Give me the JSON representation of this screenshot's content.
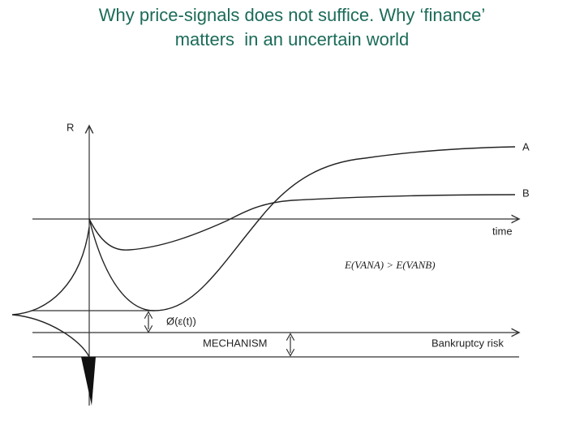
{
  "title": {
    "lines": [
      "Why price-signals does not suffice. Why ‘finance’",
      "matters  in an uncertain world"
    ]
  },
  "diagram": {
    "y_axis_label": "R",
    "curve_a_label": "A",
    "curve_b_label": "B",
    "time_axis_label": "time",
    "inequality": "E(VANA) > E(VANB)",
    "phi_label": "Ø(ε(t))",
    "mechanism_label": "MECHANISM",
    "risk_axis_label": "Bankruptcy risk"
  }
}
